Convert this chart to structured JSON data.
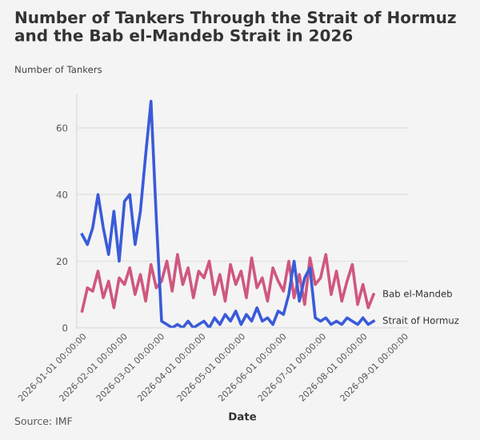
{
  "chart_data": {
    "type": "line",
    "title": "Number of Tankers Through the Strait of Hormuz and the Bab el-Mandeb Strait in 2026",
    "ylabel": "Number of Tankers",
    "xlabel": "Date",
    "annotations": [
      "Source: IMF"
    ],
    "x": [
      "2026-01-01",
      "2026-01-05",
      "2026-01-09",
      "2026-01-13",
      "2026-01-17",
      "2026-01-21",
      "2026-01-25",
      "2026-01-29",
      "2026-02-02",
      "2026-02-06",
      "2026-02-10",
      "2026-02-14",
      "2026-02-18",
      "2026-02-22",
      "2026-02-26",
      "2026-03-02",
      "2026-03-06",
      "2026-03-10",
      "2026-03-14",
      "2026-03-18",
      "2026-03-22",
      "2026-03-26",
      "2026-03-30",
      "2026-04-03",
      "2026-04-07",
      "2026-04-11",
      "2026-04-15",
      "2026-04-19",
      "2026-04-23",
      "2026-04-27",
      "2026-05-01",
      "2026-05-05",
      "2026-05-09",
      "2026-05-13",
      "2026-05-17",
      "2026-05-21",
      "2026-05-25",
      "2026-05-29",
      "2026-06-02",
      "2026-06-06",
      "2026-06-10",
      "2026-06-14",
      "2026-06-18",
      "2026-06-22",
      "2026-06-26",
      "2026-06-30",
      "2026-07-04",
      "2026-07-08",
      "2026-07-12",
      "2026-07-16",
      "2026-07-20",
      "2026-07-24",
      "2026-07-28",
      "2026-08-01",
      "2026-08-05",
      "2026-08-09"
    ],
    "series": [
      {
        "name": "Bab el-Mandeb",
        "color": "#d0577e",
        "values": [
          5,
          12,
          11,
          17,
          9,
          14,
          6,
          15,
          13,
          18,
          10,
          16,
          8,
          19,
          12,
          14,
          20,
          11,
          22,
          13,
          18,
          9,
          17,
          15,
          20,
          10,
          16,
          8,
          19,
          13,
          17,
          9,
          21,
          12,
          15,
          8,
          18,
          14,
          11,
          20,
          9,
          16,
          7,
          21,
          13,
          15,
          22,
          10,
          17,
          8,
          14,
          19,
          7,
          13,
          6,
          10
        ]
      },
      {
        "name": "Strait of Hormuz",
        "color": "#3a5bd9",
        "values": [
          28,
          25,
          30,
          40,
          30,
          22,
          35,
          20,
          38,
          40,
          25,
          35,
          52,
          68,
          33,
          2,
          1,
          0,
          1,
          0,
          2,
          0,
          1,
          2,
          0,
          3,
          1,
          4,
          2,
          5,
          1,
          4,
          2,
          6,
          2,
          3,
          1,
          5,
          4,
          10,
          20,
          8,
          15,
          18,
          3,
          2,
          3,
          1,
          2,
          1,
          3,
          2,
          1,
          3,
          1,
          2
        ]
      }
    ],
    "xlim": [
      "2025-12-28",
      "2026-09-04"
    ],
    "xticks": [
      {
        "value": "2026-01-01",
        "label": "2026-01-01 00:00:00"
      },
      {
        "value": "2026-02-01",
        "label": "2026-02-01 00:00:00"
      },
      {
        "value": "2026-03-01",
        "label": "2026-03-01 00:00:00"
      },
      {
        "value": "2026-04-01",
        "label": "2026-04-01 00:00:00"
      },
      {
        "value": "2026-05-01",
        "label": "2026-05-01 00:00:00"
      },
      {
        "value": "2026-06-01",
        "label": "2026-06-01 00:00:00"
      },
      {
        "value": "2026-07-01",
        "label": "2026-07-01 00:00:00"
      },
      {
        "value": "2026-08-01",
        "label": "2026-08-01 00:00:00"
      },
      {
        "value": "2026-09-01",
        "label": "2026-09-01 00:00:00"
      }
    ],
    "ylim": [
      0,
      70
    ],
    "yticks": [
      0,
      20,
      40,
      60
    ],
    "grid": "y",
    "legend": false
  }
}
